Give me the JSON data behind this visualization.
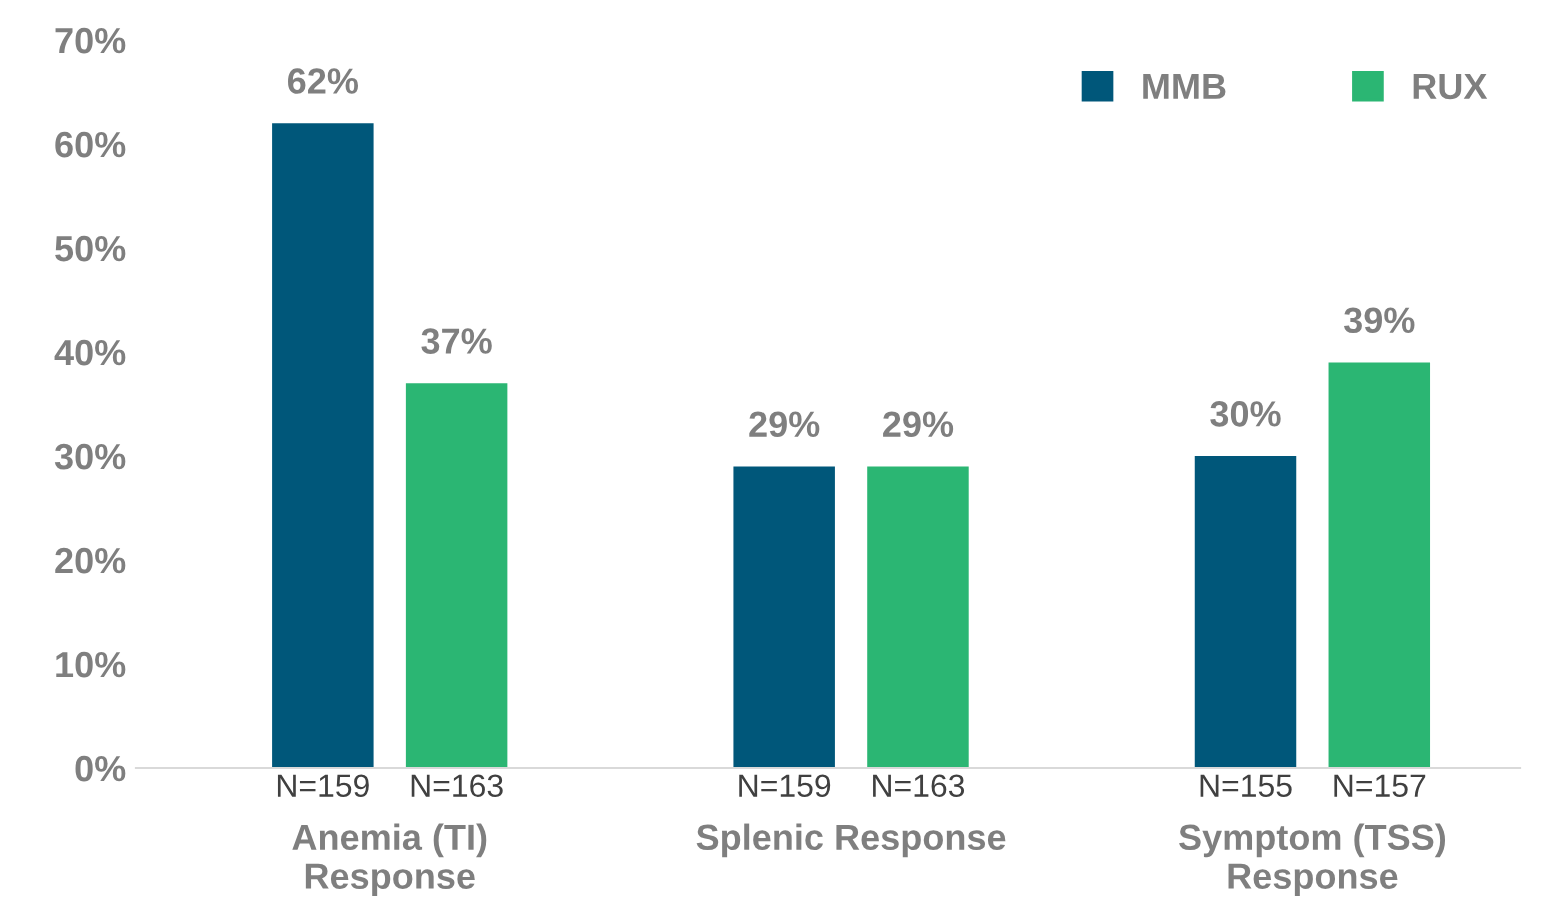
{
  "chart_data": {
    "type": "bar",
    "categories": [
      "Anemia (TI)\nResponse",
      "Splenic Response",
      "Symptom (TSS)\nResponse"
    ],
    "series": [
      {
        "name": "MMB",
        "color": "#00577a",
        "values": [
          62,
          29,
          30
        ],
        "value_labels": [
          "62%",
          "29%",
          "30%"
        ]
      },
      {
        "name": "RUX",
        "color": "#2bb673",
        "values": [
          37,
          29,
          39
        ],
        "value_labels": [
          "37%",
          "29%",
          "39%"
        ]
      }
    ],
    "ylim": [
      0,
      70
    ],
    "yticks": [
      {
        "value": 0,
        "label": "0%"
      },
      {
        "value": 10,
        "label": "10%"
      },
      {
        "value": 20,
        "label": "20%"
      },
      {
        "value": 30,
        "label": "30%"
      },
      {
        "value": 40,
        "label": "40%"
      },
      {
        "value": 50,
        "label": "50%"
      },
      {
        "value": 60,
        "label": "60%"
      },
      {
        "value": 70,
        "label": "70%"
      }
    ],
    "annotations": [
      "N=159",
      "N=163",
      "N=159",
      "N=163",
      "N=155",
      "N=157"
    ],
    "legend": "top right",
    "grid": false
  }
}
